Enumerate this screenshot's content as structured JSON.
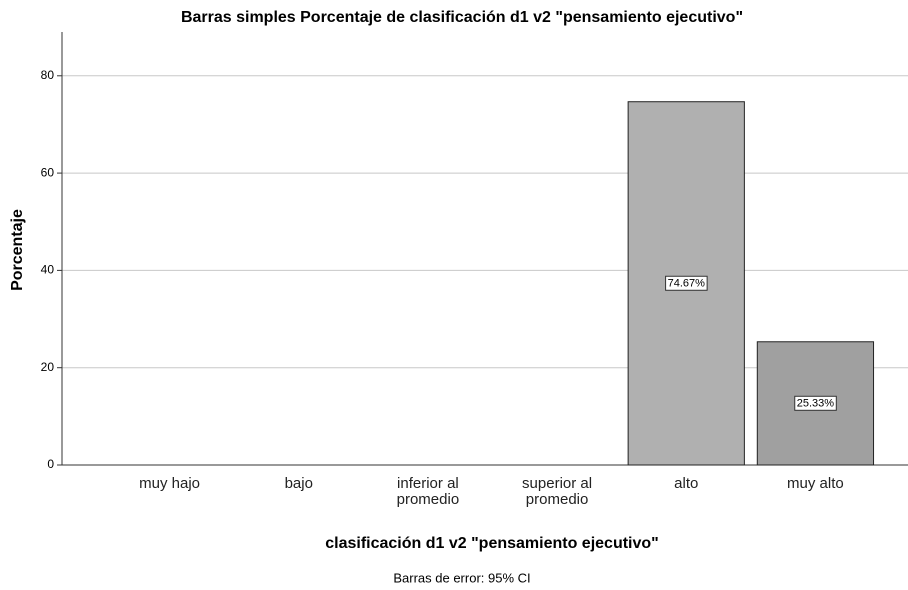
{
  "chart_data": {
    "type": "bar",
    "title": "Barras simples Porcentaje de clasificación d1 v2 \"pensamiento ejecutivo\"",
    "x_label": "clasificación d1 v2 \"pensamiento ejecutivo\"",
    "y_label": "Porcentaje",
    "footnote": "Barras de error: 95% CI",
    "categories": [
      "muy hajo",
      "bajo",
      "inferior al\npromedio",
      "superior al\npromedio",
      "alto",
      "muy alto"
    ],
    "values": [
      0,
      0,
      0,
      0,
      74.67,
      25.33
    ],
    "value_labels": [
      null,
      null,
      null,
      null,
      "74.67%",
      "25.33%"
    ],
    "colors": [
      "#b0b0b0",
      "#b0b0b0",
      "#b0b0b0",
      "#b0b0b0",
      "#b0b0b0",
      "#a0a0a0"
    ],
    "ylim": [
      0,
      89
    ],
    "yticks": [
      0,
      20,
      40,
      60,
      80
    ],
    "grid": true
  }
}
